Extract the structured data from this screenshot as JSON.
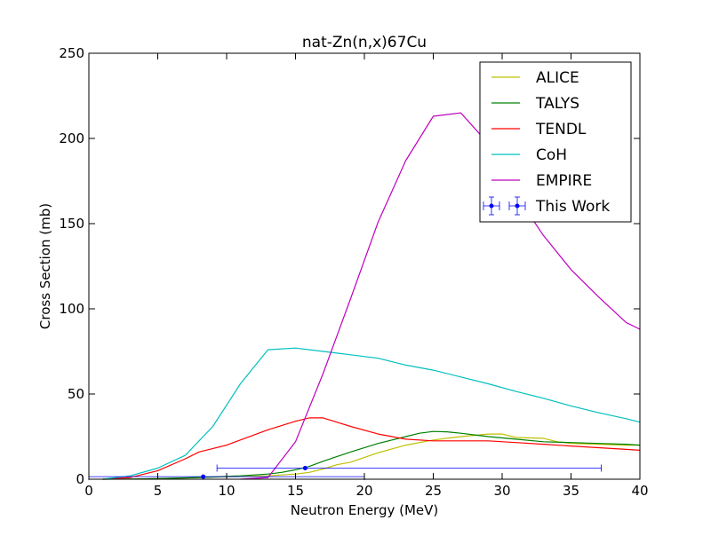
{
  "chart_data": {
    "type": "line",
    "title": "nat-Zn(n,x)67Cu",
    "xlabel": "Neutron Energy (MeV)",
    "ylabel": "Cross Section (mb)",
    "xlim": [
      0,
      40
    ],
    "ylim": [
      0,
      250
    ],
    "xticks": [
      0,
      5,
      10,
      15,
      20,
      25,
      30,
      35,
      40
    ],
    "yticks": [
      0,
      50,
      100,
      150,
      200,
      250
    ],
    "grid": false,
    "legend_position": "top-right",
    "series": [
      {
        "name": "ALICE",
        "color": "#bfbf00",
        "x": [
          1,
          3,
          5,
          7,
          9,
          11,
          13,
          14,
          15,
          16,
          17,
          18,
          19,
          21,
          23,
          25,
          27,
          29,
          30,
          31,
          33,
          34,
          35,
          37,
          39,
          40
        ],
        "y": [
          0,
          0.1,
          0.3,
          0.7,
          1.2,
          1.6,
          2.0,
          2.5,
          3.0,
          4.0,
          6.0,
          8.5,
          10,
          15.5,
          20,
          23,
          25,
          26.5,
          26.5,
          24.5,
          24,
          22,
          21,
          20.5,
          20,
          20
        ]
      },
      {
        "name": "TALYS",
        "color": "#008000",
        "x": [
          1,
          3,
          5,
          7,
          9,
          11,
          13,
          14,
          15,
          16,
          17,
          19,
          21,
          23,
          24,
          25,
          26,
          27,
          29,
          31,
          33,
          35,
          37,
          39,
          40
        ],
        "y": [
          0,
          0.1,
          0.3,
          0.8,
          1.3,
          2.0,
          3.0,
          4.0,
          5.5,
          7.5,
          10.5,
          16,
          21,
          25,
          27,
          28,
          27.8,
          27,
          25,
          23.5,
          22,
          21.5,
          21,
          20.5,
          20
        ]
      },
      {
        "name": "TENDL",
        "color": "#ff0000",
        "x": [
          1,
          3,
          5,
          7,
          8,
          9,
          10,
          11,
          13,
          15,
          16,
          17,
          19,
          21,
          23,
          25,
          27,
          29,
          31,
          33,
          35,
          37,
          39,
          40
        ],
        "y": [
          0,
          1,
          5,
          12,
          16,
          18,
          20,
          23,
          29,
          34,
          36,
          36,
          31,
          26.5,
          23.5,
          22.5,
          22.5,
          22.5,
          21.5,
          20.5,
          19.5,
          18.5,
          17.5,
          17
        ]
      },
      {
        "name": "CoH",
        "color": "#00bfbf",
        "x": [
          1,
          3,
          5,
          7,
          9,
          11,
          13,
          15,
          17,
          19,
          21,
          23,
          25,
          27,
          29,
          31,
          33,
          35,
          37,
          39,
          40
        ],
        "y": [
          0,
          2,
          6.5,
          14,
          31,
          56,
          76,
          77,
          75,
          73,
          71,
          67,
          64,
          60,
          56,
          51.5,
          47.5,
          43,
          39,
          35.5,
          33.5
        ]
      },
      {
        "name": "EMPIRE",
        "color": "#bf00bf",
        "x": [
          11,
          13,
          15,
          17,
          19,
          21,
          23,
          25,
          27,
          29,
          31,
          33,
          35,
          37,
          39,
          40
        ],
        "y": [
          0,
          1,
          22,
          62,
          106,
          151,
          187,
          213,
          215,
          197,
          167,
          143,
          123,
          107,
          92,
          88
        ]
      }
    ],
    "this_work": {
      "name": "This Work",
      "color": "#0000ff",
      "points": [
        {
          "x": 8.3,
          "y": 1.5,
          "xerr_low": 8.3,
          "xerr_high": 11.7
        },
        {
          "x": 15.7,
          "y": 6.5,
          "xerr_low": 6.4,
          "xerr_high": 21.5
        }
      ]
    }
  }
}
